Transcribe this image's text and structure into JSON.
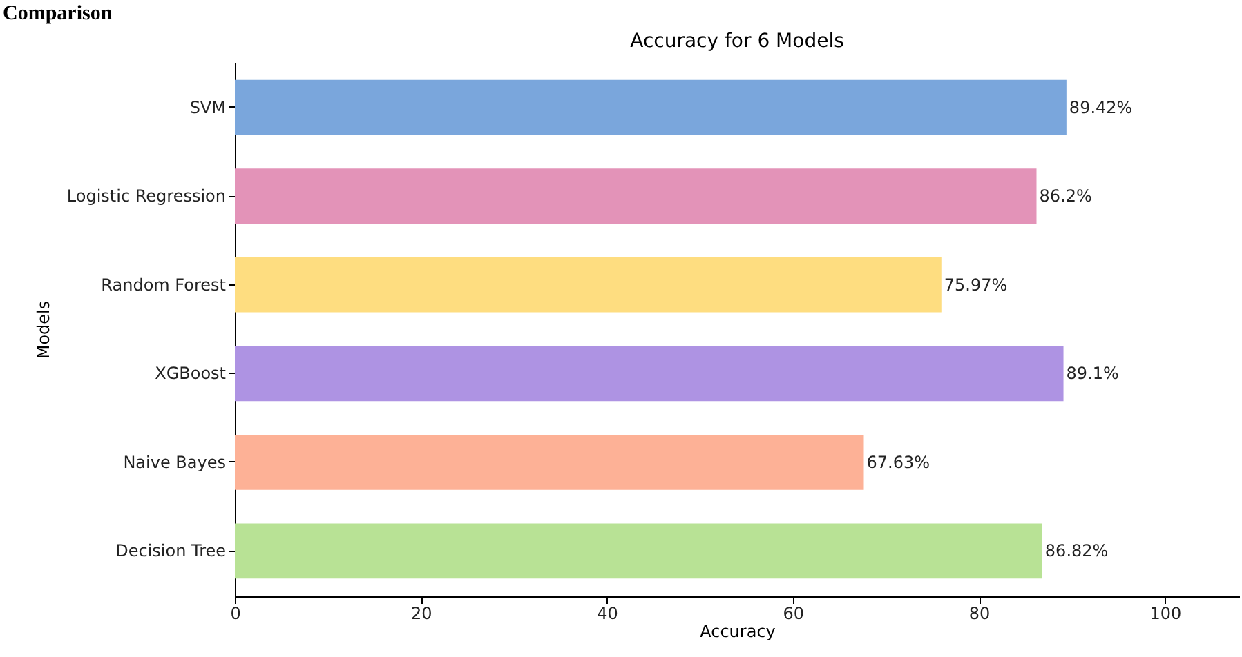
{
  "chart_data": {
    "type": "bar",
    "orientation": "horizontal",
    "title": "Accuracy for 6 Models",
    "xlabel": "Accuracy",
    "ylabel": "Models",
    "categories": [
      "SVM",
      "Logistic Regression",
      "Random Forest",
      "XGBoost",
      "Naive Bayes",
      "Decision Tree"
    ],
    "values": [
      89.42,
      86.2,
      75.97,
      89.1,
      67.63,
      86.82
    ],
    "colors": [
      "#7aa6dc",
      "#e393b8",
      "#fedd80",
      "#ae93e3",
      "#fdb196",
      "#b8e295"
    ],
    "value_labels": [
      "89.42%",
      "86.2%",
      "75.97%",
      "89.1%",
      "67.63%",
      "86.82%"
    ],
    "xlim": [
      0,
      108
    ],
    "xticks": [
      0,
      20,
      40,
      60,
      80,
      100
    ],
    "grid": false,
    "annotations": [
      "Comparison"
    ]
  }
}
